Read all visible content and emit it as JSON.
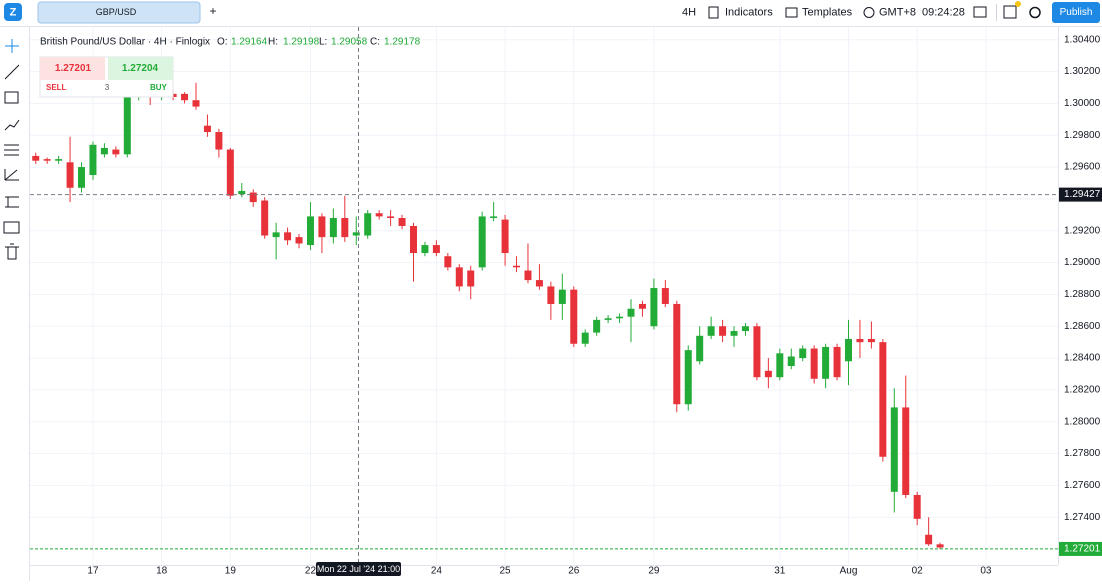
{
  "toolbar": {
    "symbol": "GBP/USD",
    "add_tab": "+",
    "interval": "4H",
    "indicators": "Indicators",
    "templates": "Templates",
    "timezone": "GMT+8",
    "clock": "09:24:28",
    "publish": "Publish"
  },
  "legend": {
    "name": "British Pound/US Dollar · 4H · Finlogix",
    "o_label": "O:",
    "o": "1.29164",
    "h_label": "H:",
    "h": "1.29198",
    "l_label": "L:",
    "l": "1.29058",
    "c_label": "C:",
    "c": "1.29178"
  },
  "trade": {
    "sell_price": "1.27201",
    "buy_price": "1.27204",
    "sell": "SELL",
    "quantity": "3",
    "buy": "BUY"
  },
  "crosshair": {
    "price": 1.29427,
    "time_label": "Mon 22 Jul '24 21:00"
  },
  "last_price": 1.27201,
  "chart_data": {
    "type": "candlestick",
    "up_color": "#22ab37",
    "down_color": "#e8323a",
    "grid": true,
    "open": [
      1.2967,
      1.2965,
      1.2964,
      1.2963,
      1.2947,
      1.2955,
      1.2968,
      1.2971,
      1.2968,
      1.3004,
      1.3006,
      1.3004,
      1.3006,
      1.3006,
      1.3002,
      1.2986,
      1.2982,
      1.2971,
      1.2943,
      1.2944,
      1.2939,
      1.2916,
      1.2919,
      1.2916,
      1.2911,
      1.2929,
      1.2916,
      1.2928,
      1.2917,
      1.2917,
      1.2931,
      1.2929,
      1.2928,
      1.2923,
      1.2906,
      1.2911,
      1.2904,
      1.2897,
      1.2895,
      1.2897,
      1.2928,
      1.2927,
      1.2898,
      1.2895,
      1.2889,
      1.2885,
      1.2874,
      1.2883,
      1.2849,
      1.2856,
      1.2864,
      1.2865,
      1.2866,
      1.2874,
      1.286,
      1.2884,
      1.2874,
      1.2811,
      1.2838,
      1.2854,
      1.286,
      1.2854,
      1.2857,
      1.286,
      1.2832,
      1.2828,
      1.2835,
      1.284,
      1.2846,
      1.2827,
      1.2847,
      1.2838,
      1.2852,
      1.2852,
      1.285,
      1.2756,
      1.2809,
      1.2754,
      1.2729,
      1.2723
    ],
    "high": [
      1.2969,
      1.2966,
      1.2967,
      1.2979,
      1.2963,
      1.2976,
      1.2975,
      1.2973,
      1.3013,
      1.3012,
      1.3008,
      1.3009,
      1.3008,
      1.3007,
      1.3013,
      1.2993,
      1.2984,
      1.2972,
      1.295,
      1.2946,
      1.2941,
      1.2925,
      1.2922,
      1.2918,
      1.2938,
      1.2931,
      1.2934,
      1.2942,
      1.2929,
      1.2933,
      1.2933,
      1.2933,
      1.293,
      1.2925,
      1.2913,
      1.2914,
      1.2906,
      1.2899,
      1.2898,
      1.2932,
      1.2938,
      1.293,
      1.2904,
      1.2912,
      1.2899,
      1.2888,
      1.2893,
      1.2885,
      1.2858,
      1.2866,
      1.2867,
      1.2868,
      1.2877,
      1.2876,
      1.289,
      1.2889,
      1.2876,
      1.2848,
      1.286,
      1.2866,
      1.2864,
      1.286,
      1.2862,
      1.2862,
      1.284,
      1.2846,
      1.2846,
      1.2848,
      1.2848,
      1.2849,
      1.2849,
      1.2864,
      1.2864,
      1.2863,
      1.2852,
      1.2821,
      1.2829,
      1.2756,
      1.274,
      1.2724
    ],
    "low": [
      1.2962,
      1.2962,
      1.2962,
      1.2938,
      1.2944,
      1.2952,
      1.2966,
      1.2966,
      1.2966,
      1.3002,
      1.2999,
      1.3002,
      1.3002,
      1.3,
      1.2996,
      1.2979,
      1.2966,
      1.294,
      1.2941,
      1.2935,
      1.2915,
      1.2902,
      1.2911,
      1.2909,
      1.2908,
      1.2906,
      1.2912,
      1.2913,
      1.2911,
      1.2915,
      1.2927,
      1.2923,
      1.2921,
      1.2888,
      1.2904,
      1.2904,
      1.2895,
      1.2882,
      1.2877,
      1.2895,
      1.2926,
      1.2898,
      1.2894,
      1.2887,
      1.2883,
      1.2864,
      1.2864,
      1.2847,
      1.2847,
      1.2854,
      1.2862,
      1.2862,
      1.285,
      1.2866,
      1.2858,
      1.2872,
      1.2806,
      1.2807,
      1.2836,
      1.2852,
      1.285,
      1.2847,
      1.2854,
      1.2826,
      1.2821,
      1.2826,
      1.2833,
      1.2838,
      1.2824,
      1.2821,
      1.2826,
      1.2823,
      1.284,
      1.2846,
      1.2775,
      1.2743,
      1.2752,
      1.2735,
      1.2722,
      1.272
    ],
    "close": [
      1.2964,
      1.2964,
      1.2965,
      1.2947,
      1.296,
      1.2974,
      1.2972,
      1.2968,
      1.3007,
      1.3007,
      1.3004,
      1.3007,
      1.3004,
      1.3002,
      1.2998,
      1.2982,
      1.2971,
      1.2942,
      1.2945,
      1.2938,
      1.2917,
      1.2919,
      1.2914,
      1.2912,
      1.2929,
      1.2916,
      1.2928,
      1.2916,
      1.2919,
      1.2931,
      1.2929,
      1.2928,
      1.2923,
      1.2906,
      1.2911,
      1.2906,
      1.2897,
      1.2885,
      1.2885,
      1.2929,
      1.2929,
      1.2906,
      1.2897,
      1.2889,
      1.2885,
      1.2874,
      1.2883,
      1.2849,
      1.2856,
      1.2864,
      1.2865,
      1.2866,
      1.2871,
      1.2871,
      1.2884,
      1.2874,
      1.2811,
      1.2845,
      1.2854,
      1.286,
      1.2854,
      1.2857,
      1.286,
      1.2828,
      1.2828,
      1.2843,
      1.2841,
      1.2846,
      1.2827,
      1.2847,
      1.2828,
      1.2852,
      1.285,
      1.285,
      1.2778,
      1.2809,
      1.2754,
      1.2739,
      1.2723,
      1.2721
    ],
    "xlim": [
      -0.5,
      89.3
    ],
    "xticks": [
      {
        "value": 5,
        "label": "17"
      },
      {
        "value": 11,
        "label": "18"
      },
      {
        "value": 17,
        "label": "19"
      },
      {
        "value": 24,
        "label": "22"
      },
      {
        "value": 35,
        "label": "24"
      },
      {
        "value": 41,
        "label": "25"
      },
      {
        "value": 47,
        "label": "26"
      },
      {
        "value": 54,
        "label": "29"
      },
      {
        "value": 65,
        "label": "31"
      },
      {
        "value": 71,
        "label": "Aug"
      },
      {
        "value": 77,
        "label": "02"
      },
      {
        "value": 83,
        "label": "03"
      }
    ],
    "ylim": [
      1.271,
      1.3048
    ],
    "yticks": [
      {
        "value": 1.304,
        "label": "1.30400"
      },
      {
        "value": 1.302,
        "label": "1.30200"
      },
      {
        "value": 1.3,
        "label": "1.30000"
      },
      {
        "value": 1.298,
        "label": "1.29800"
      },
      {
        "value": 1.296,
        "label": "1.29600"
      },
      {
        "value": 1.294,
        "label": "1.29400"
      },
      {
        "value": 1.292,
        "label": "1.29200"
      },
      {
        "value": 1.29,
        "label": "1.29000"
      },
      {
        "value": 1.288,
        "label": "1.28800"
      },
      {
        "value": 1.286,
        "label": "1.28600"
      },
      {
        "value": 1.284,
        "label": "1.28400"
      },
      {
        "value": 1.282,
        "label": "1.28200"
      },
      {
        "value": 1.28,
        "label": "1.28000"
      },
      {
        "value": 1.278,
        "label": "1.27800"
      },
      {
        "value": 1.276,
        "label": "1.27600"
      },
      {
        "value": 1.274,
        "label": "1.27400"
      }
    ]
  }
}
